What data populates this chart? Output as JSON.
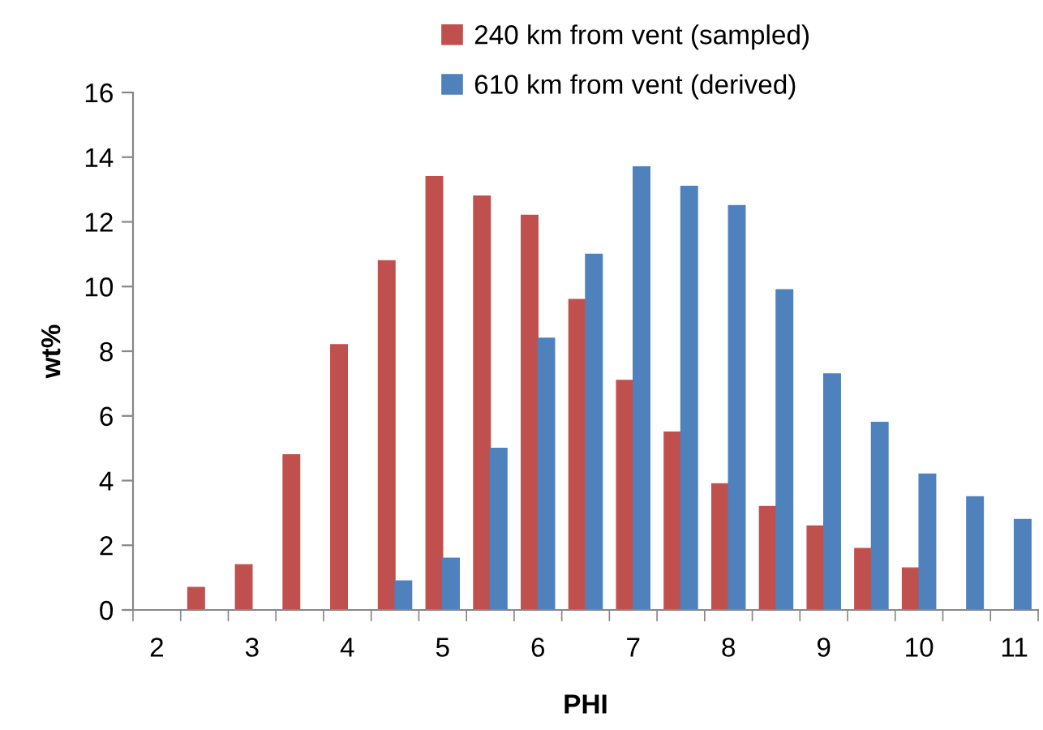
{
  "chart_data": {
    "type": "bar",
    "xlabel": "PHI",
    "ylabel": "wt%",
    "categories": [
      "2",
      null,
      "3",
      null,
      "4",
      null,
      "5",
      null,
      "6",
      null,
      "7",
      null,
      "8",
      null,
      "9",
      null,
      "10",
      null,
      "11"
    ],
    "series": [
      {
        "name": "240 km from vent (sampled)",
        "color": "#c0504d",
        "values": [
          null,
          0.7,
          1.4,
          4.8,
          8.2,
          10.8,
          13.4,
          12.8,
          12.2,
          9.6,
          7.1,
          5.5,
          3.9,
          3.2,
          2.6,
          1.9,
          1.3,
          null,
          null
        ]
      },
      {
        "name": "610 km from vent (derived)",
        "color": "#4f81bd",
        "values": [
          null,
          null,
          null,
          null,
          null,
          0.9,
          1.6,
          5.0,
          8.4,
          11.0,
          13.7,
          13.1,
          12.5,
          9.9,
          7.3,
          5.8,
          4.2,
          3.5,
          2.8
        ]
      }
    ],
    "ylim": [
      0,
      16
    ],
    "yticks": [
      0,
      2,
      4,
      6,
      8,
      10,
      12,
      14,
      16
    ],
    "grid": false,
    "legend": "top"
  }
}
